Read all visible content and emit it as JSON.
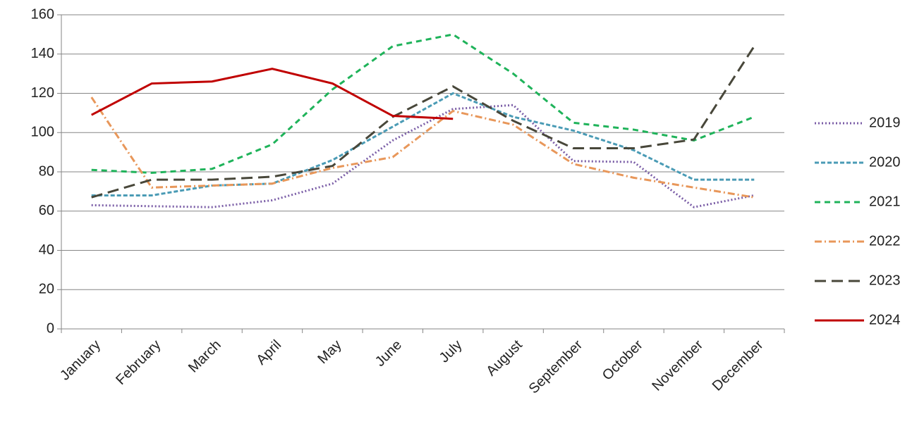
{
  "chart_data": {
    "type": "line",
    "categories": [
      "January",
      "February",
      "March",
      "April",
      "May",
      "June",
      "July",
      "August",
      "September",
      "October",
      "November",
      "December"
    ],
    "series": [
      {
        "name": "2019",
        "color": "#7b5ea7",
        "values": [
          63,
          62.5,
          62,
          65.5,
          74,
          96,
          112,
          114,
          85.5,
          85,
          62,
          68
        ]
      },
      {
        "name": "2020",
        "color": "#4a9bb5",
        "values": [
          68,
          68,
          73,
          74,
          86,
          103,
          120,
          108,
          101,
          91,
          76,
          76
        ]
      },
      {
        "name": "2021",
        "color": "#1fb35a",
        "values": [
          81,
          79.5,
          81.5,
          94,
          122,
          144,
          150,
          130,
          105,
          101.5,
          96,
          108
        ]
      },
      {
        "name": "2022",
        "color": "#e8975a",
        "values": [
          118,
          72,
          73,
          74,
          82,
          87.5,
          111,
          104,
          84,
          77,
          72,
          67
        ]
      },
      {
        "name": "2023",
        "color": "#48473a",
        "values": [
          67,
          76,
          76,
          77.5,
          83,
          108,
          123.5,
          106,
          92,
          92,
          96.5,
          144
        ]
      },
      {
        "name": "2024",
        "color": "#c00000",
        "values": [
          109,
          125,
          126,
          132.5,
          125,
          108.5,
          107,
          null,
          null,
          null,
          null,
          null
        ]
      }
    ],
    "ylim": [
      0,
      160
    ],
    "yticks": [
      0,
      20,
      40,
      60,
      80,
      100,
      120,
      140,
      160
    ],
    "grid": true,
    "legend": "right"
  }
}
